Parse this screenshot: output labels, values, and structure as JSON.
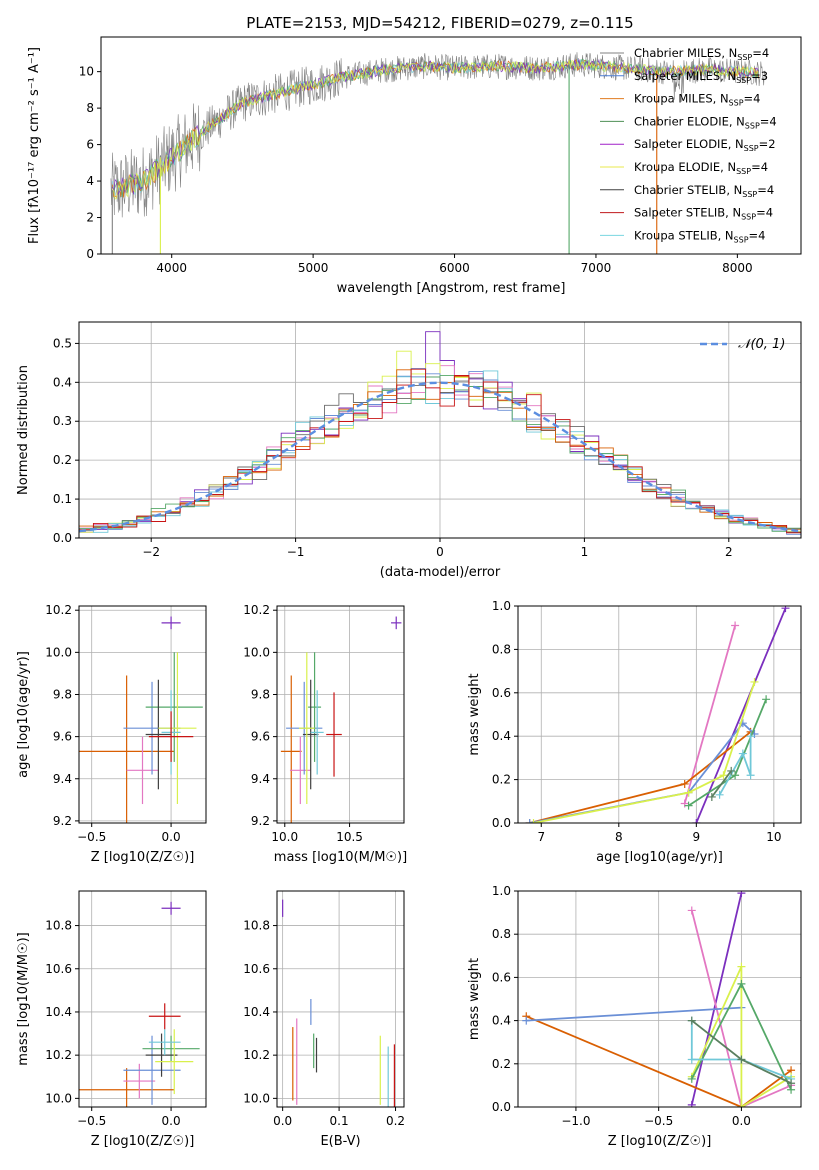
{
  "figure": {
    "title": "PLATE=2153, MJD=54212, FIBERID=0279, z=0.115"
  },
  "palette": {
    "series": [
      "#808080",
      "#4c7fd6",
      "#e07b20",
      "#4e8f55",
      "#a020c8",
      "#e8e84c",
      "#404040",
      "#c0181c",
      "#7ad6e0"
    ],
    "spectrum_gray": "#808080",
    "normal_curve": "#5b8ee0",
    "pink": "#e377c2",
    "green": "#55a868",
    "yellow": "#d9f04c",
    "cyan": "#70c8d8",
    "orange": "#d95f02",
    "red": "#c81414",
    "purple": "#7b2fbe",
    "blue": "#6a8fd6",
    "grid": "#b0b0b0"
  },
  "chart_data": [
    {
      "id": "spectrum",
      "type": "line",
      "title": "PLATE=2153, MJD=54212, FIBERID=0279, z=0.115",
      "xlabel": "wavelength [Angstrom, rest frame]",
      "ylabel": "Flux [fλ10⁻¹⁷ erg cm⁻² s⁻¹ A⁻¹]",
      "xlim": [
        3500,
        8450
      ],
      "ylim": [
        0,
        11.9
      ],
      "xticks": [
        4000,
        5000,
        6000,
        7000,
        8000
      ],
      "yticks": [
        0,
        2,
        4,
        6,
        8,
        10
      ],
      "grid": false,
      "legend_position": "right",
      "legend": [
        "Chabrier MILES, N_SSP=4",
        "Salpeter MILES, N_SSP=3",
        "Kroupa MILES, N_SSP=4",
        "Chabrier ELODIE, N_SSP=4",
        "Salpeter ELODIE, N_SSP=2",
        "Kroupa ELODIE, N_SSP=4",
        "Chabrier STELIB, N_SSP=4",
        "Salpeter STELIB, N_SSP=4",
        "Kroupa STELIB, N_SSP=4"
      ],
      "trend_x": [
        3600,
        3800,
        4000,
        4200,
        4500,
        4800,
        5000,
        5200,
        5500,
        5800,
        6000,
        6300,
        6600,
        6900,
        7200,
        7500,
        7800,
        8200
      ],
      "trend_y": [
        3.5,
        4.0,
        5.3,
        6.6,
        8.3,
        8.9,
        9.3,
        9.7,
        10.1,
        10.3,
        10.2,
        10.3,
        10.2,
        10.4,
        10.2,
        10.0,
        10.1,
        9.9
      ]
    },
    {
      "id": "residuals",
      "type": "line",
      "xlabel": "(data-model)/error",
      "ylabel": "Normed distribution",
      "xlim": [
        -2.5,
        2.5
      ],
      "ylim": [
        0,
        0.555
      ],
      "xticks": [
        -2,
        -1,
        0,
        1,
        2
      ],
      "yticks": [
        0.0,
        0.1,
        0.2,
        0.3,
        0.4,
        0.5
      ],
      "grid": true,
      "legend_position": "top-right",
      "legend": [
        "𝒩(0, 1)"
      ],
      "bin_width": 0.1
    },
    {
      "id": "age_vs_Z",
      "type": "scatter",
      "xlabel": "Z [log10(Z/Z☉)]",
      "ylabel": "age [log10(age/yr)]",
      "xlim": [
        -0.58,
        0.22
      ],
      "ylim": [
        9.19,
        10.22
      ],
      "xticks": [
        -0.5,
        0.0
      ],
      "yticks": [
        9.2,
        9.4,
        9.6,
        9.8,
        10.0,
        10.2
      ],
      "grid": true,
      "points": [
        {
          "x": 0.0,
          "y": 10.14,
          "xerr": 0.06,
          "yerr": 0.03
        },
        {
          "x": -0.28,
          "y": 9.53,
          "xerr": 0.3,
          "yerr": 0.36
        },
        {
          "x": -0.18,
          "y": 9.44,
          "xerr": 0.1,
          "yerr": 0.16
        },
        {
          "x": -0.12,
          "y": 9.64,
          "xerr": 0.18,
          "yerr": 0.22
        },
        {
          "x": 0.02,
          "y": 9.74,
          "xerr": 0.18,
          "yerr": 0.26
        },
        {
          "x": -0.08,
          "y": 9.61,
          "xerr": 0.08,
          "yerr": 0.26
        },
        {
          "x": 0.04,
          "y": 9.64,
          "xerr": 0.12,
          "yerr": 0.36
        },
        {
          "x": 0.0,
          "y": 9.62,
          "xerr": 0.06,
          "yerr": 0.2
        },
        {
          "x": 0.0,
          "y": 9.6,
          "xerr": 0.14,
          "yerr": 0.12
        }
      ]
    },
    {
      "id": "age_vs_mass",
      "type": "scatter",
      "xlabel": "mass [log10(M/M☉)]",
      "ylabel": "",
      "xlim": [
        9.94,
        10.92
      ],
      "ylim": [
        9.19,
        10.22
      ],
      "xticks": [
        10.0,
        10.5
      ],
      "yticks": [
        9.2,
        9.4,
        9.6,
        9.8,
        10.0,
        10.2
      ],
      "grid": true,
      "points": [
        {
          "x": 10.86,
          "y": 10.14,
          "xerr": 0.04,
          "yerr": 0.03
        },
        {
          "x": 10.05,
          "y": 9.53,
          "xerr": 0.08,
          "yerr": 0.36
        },
        {
          "x": 10.12,
          "y": 9.44,
          "xerr": 0.08,
          "yerr": 0.16
        },
        {
          "x": 10.15,
          "y": 9.64,
          "xerr": 0.14,
          "yerr": 0.22
        },
        {
          "x": 10.23,
          "y": 9.74,
          "xerr": 0.05,
          "yerr": 0.26
        },
        {
          "x": 10.2,
          "y": 9.61,
          "xerr": 0.06,
          "yerr": 0.26
        },
        {
          "x": 10.17,
          "y": 9.64,
          "xerr": 0.06,
          "yerr": 0.36
        },
        {
          "x": 10.25,
          "y": 9.62,
          "xerr": 0.05,
          "yerr": 0.2
        },
        {
          "x": 10.38,
          "y": 9.61,
          "xerr": 0.06,
          "yerr": 0.2
        }
      ]
    },
    {
      "id": "mass_weight_vs_age",
      "type": "line",
      "xlabel": "age [log10(age/yr)]",
      "ylabel": "mass weight",
      "xlim": [
        6.7,
        10.35
      ],
      "ylim": [
        0,
        1.0
      ],
      "xticks": [
        7,
        8,
        9,
        10
      ],
      "yticks": [
        0.0,
        0.2,
        0.4,
        0.6,
        0.8,
        1.0
      ],
      "grid": true
    },
    {
      "id": "mass_vs_Z",
      "type": "scatter",
      "xlabel": "Z [log10(Z/Z☉)]",
      "ylabel": "mass [log10(M/M☉)]",
      "xlim": [
        -0.58,
        0.22
      ],
      "ylim": [
        9.96,
        10.96
      ],
      "xticks": [
        -0.5,
        0.0
      ],
      "yticks": [
        10.0,
        10.2,
        10.4,
        10.6,
        10.8
      ],
      "grid": true,
      "points": [
        {
          "x": 0.0,
          "y": 10.88,
          "xerr": 0.06,
          "yerr": 0.03
        },
        {
          "x": -0.28,
          "y": 10.04,
          "xerr": 0.3,
          "yerr": 0.1
        },
        {
          "x": -0.2,
          "y": 10.08,
          "xerr": 0.1,
          "yerr": 0.08
        },
        {
          "x": -0.12,
          "y": 10.13,
          "xerr": 0.18,
          "yerr": 0.16
        },
        {
          "x": 0.0,
          "y": 10.23,
          "xerr": 0.18,
          "yerr": 0.06
        },
        {
          "x": -0.06,
          "y": 10.2,
          "xerr": 0.1,
          "yerr": 0.1
        },
        {
          "x": 0.02,
          "y": 10.17,
          "xerr": 0.12,
          "yerr": 0.15
        },
        {
          "x": -0.04,
          "y": 10.26,
          "xerr": 0.1,
          "yerr": 0.06
        },
        {
          "x": -0.04,
          "y": 10.38,
          "xerr": 0.1,
          "yerr": 0.06
        }
      ]
    },
    {
      "id": "mass_vs_ebv",
      "type": "scatter",
      "xlabel": "E(B-V)",
      "ylabel": "",
      "xlim": [
        -0.01,
        0.215
      ],
      "ylim": [
        9.96,
        10.96
      ],
      "xticks": [
        0.0,
        0.1,
        0.2
      ],
      "yticks": [
        10.0,
        10.2,
        10.4,
        10.6,
        10.8
      ],
      "grid": true,
      "points": [
        {
          "x": 0.0,
          "y": 10.88,
          "xerr": 0.0,
          "yerr": 0.04
        },
        {
          "x": 0.018,
          "y": 10.16,
          "xerr": 0.0,
          "yerr": 0.17
        },
        {
          "x": 0.025,
          "y": 10.17,
          "xerr": 0.0,
          "yerr": 0.2
        },
        {
          "x": 0.05,
          "y": 10.4,
          "xerr": 0.0,
          "yerr": 0.06
        },
        {
          "x": 0.055,
          "y": 10.22,
          "xerr": 0.0,
          "yerr": 0.08
        },
        {
          "x": 0.06,
          "y": 10.2,
          "xerr": 0.0,
          "yerr": 0.08
        },
        {
          "x": 0.173,
          "y": 10.13,
          "xerr": 0.0,
          "yerr": 0.16
        },
        {
          "x": 0.187,
          "y": 10.1,
          "xerr": 0.0,
          "yerr": 0.14
        },
        {
          "x": 0.198,
          "y": 10.1,
          "xerr": 0.0,
          "yerr": 0.15
        }
      ]
    },
    {
      "id": "mass_weight_vs_Z",
      "type": "line",
      "xlabel": "Z [log10(Z/Z☉)]",
      "ylabel": "mass weight",
      "xlim": [
        -1.35,
        0.36
      ],
      "ylim": [
        0,
        1.0
      ],
      "xticks": [
        -1.0,
        -0.5,
        0.0
      ],
      "yticks": [
        0.0,
        0.2,
        0.4,
        0.6,
        0.8,
        1.0
      ],
      "grid": true
    }
  ]
}
